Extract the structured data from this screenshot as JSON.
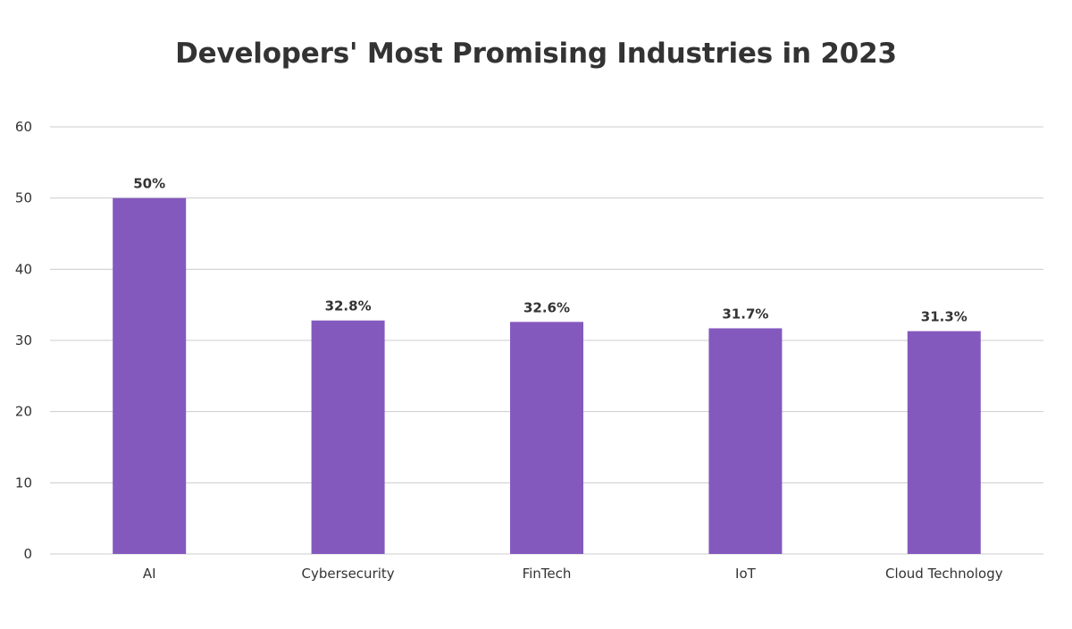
{
  "chart_data": {
    "type": "bar",
    "title": "Developers' Most Promising Industries in 2023",
    "categories": [
      "AI",
      "Cybersecurity",
      "FinTech",
      "IoT",
      "Cloud Technology"
    ],
    "values": [
      50,
      32.8,
      32.6,
      31.7,
      31.3
    ],
    "data_labels": [
      "50%",
      "32.8%",
      "32.6%",
      "31.7%",
      "31.3%"
    ],
    "xlabel": "",
    "ylabel": "",
    "ylim": [
      0,
      60
    ],
    "yticks": [
      0,
      10,
      20,
      30,
      40,
      50,
      60
    ],
    "grid": true,
    "legend": "none",
    "bar_color": "#8459be",
    "grid_color": "#cccccc",
    "text_color": "#333333"
  }
}
